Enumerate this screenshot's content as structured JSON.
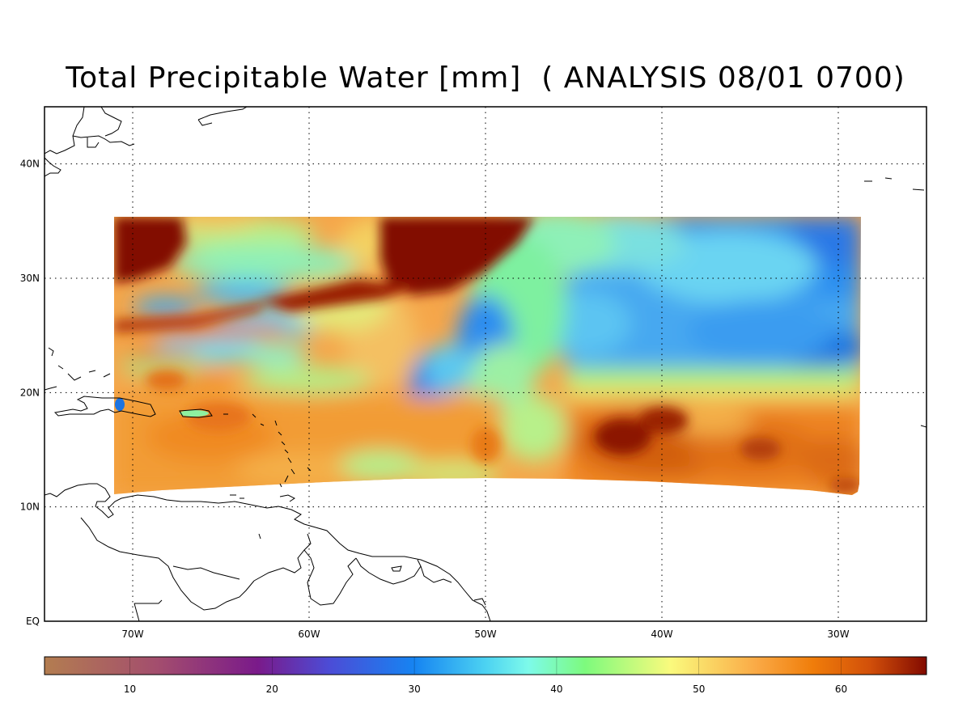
{
  "title": "Total Precipitable Water [mm]  ( ANALYSIS 08/01 0700)",
  "map": {
    "lon_range": [
      -75,
      -25
    ],
    "lat_range": [
      0,
      45
    ],
    "lon_ticks": [
      {
        "value": -70,
        "label": "70W"
      },
      {
        "value": -60,
        "label": "60W"
      },
      {
        "value": -50,
        "label": "50W"
      },
      {
        "value": -40,
        "label": "40W"
      },
      {
        "value": -30,
        "label": "30W"
      }
    ],
    "lat_ticks": [
      {
        "value": 0,
        "label": "EQ"
      },
      {
        "value": 10,
        "label": "10N"
      },
      {
        "value": 20,
        "label": "20N"
      },
      {
        "value": 30,
        "label": "30N"
      },
      {
        "value": 40,
        "label": "40N"
      }
    ],
    "grid": true,
    "grid_style": "dotted",
    "data_lon_range": [
      -71,
      -29
    ]
  },
  "colorbar": {
    "range": [
      4,
      66
    ],
    "ticks": [
      10,
      20,
      30,
      40,
      50,
      60
    ],
    "colormap": [
      {
        "v": 4,
        "c": "#b37d50"
      },
      {
        "v": 12,
        "c": "#a34d6e"
      },
      {
        "v": 19,
        "c": "#7a1a8a"
      },
      {
        "v": 24,
        "c": "#4c4cd6"
      },
      {
        "v": 30,
        "c": "#1684f2"
      },
      {
        "v": 35,
        "c": "#4cd2f2"
      },
      {
        "v": 38,
        "c": "#7dfaea"
      },
      {
        "v": 42,
        "c": "#7dfa7d"
      },
      {
        "v": 48,
        "c": "#fafa7d"
      },
      {
        "v": 54,
        "c": "#faaa46"
      },
      {
        "v": 58,
        "c": "#f07d0a"
      },
      {
        "v": 62,
        "c": "#d2500a"
      },
      {
        "v": 66,
        "c": "#820a00"
      }
    ]
  }
}
